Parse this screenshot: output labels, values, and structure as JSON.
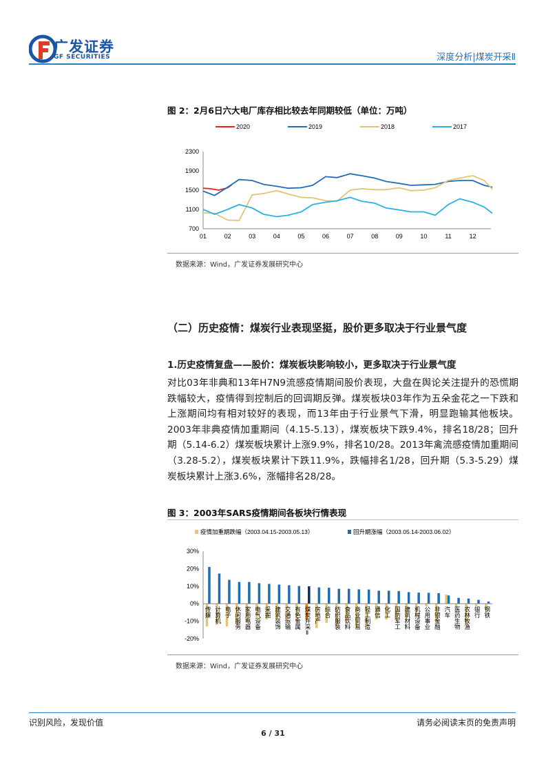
{
  "header": {
    "logo_cn": "广发证券",
    "logo_en": "GF SECURITIES",
    "report_type": "深度分析|煤炭开采Ⅱ",
    "brand_color": "#1a56a5",
    "accent_red": "#e23a2a"
  },
  "figure2": {
    "title": "图 2：2月6日六大电厂库存相比较去年同期较低（单位：万吨）",
    "source": "数据来源：Wind，广发证券发展研究中心"
  },
  "section": {
    "heading": "（二）历史疫情：煤炭行业表现坚挺，股价更多取决于行业景气度",
    "subheading": "1.历史疫情复盘——股价：煤炭板块影响较小，更多取决于行业景气度",
    "paragraph": "对比03年非典和13年H7N9流感疫情期间股价表现，大盘在舆论关注提升的恐慌期跌幅较大，疫情得到控制后的回调期反弹。煤炭板块03年作为五朵金花之一下跌和上涨期间均有相对较好的表现，而13年由于行业景气下滑，明显跑输其他板块。2003年非典疫情加重期间（4.15-5.13），煤炭板块下跌9.4%，排名18/28；回升期（5.14-6.2）煤炭板块累计上涨9.9%，排名10/28。2013年禽流感疫情加重期间（3.28-5.2），煤炭板块累计下跌11.9%，跌幅排名1/28，回升期（5.3-5.29）煤炭板块累计上涨3.6%，涨幅排名28/28。"
  },
  "figure3": {
    "title": "图 3：2003年SARS疫情期间各板块行情表现",
    "source": "数据来源：Wind，广发证券发展研究中心"
  },
  "footer": {
    "left": "识别风险，发现价值",
    "right": "请务必阅读末页的免责声明",
    "page": "6 / 31"
  },
  "chart_data": [
    {
      "type": "line",
      "ylim": [
        700,
        2300
      ],
      "yticks": [
        "2300",
        "1900",
        "1500",
        "1100",
        "700"
      ],
      "xticks": [
        "01",
        "02",
        "03",
        "04",
        "05",
        "06",
        "07",
        "08",
        "09",
        "10",
        "11",
        "12"
      ],
      "legend": "top",
      "grid": false,
      "series": [
        {
          "name": "2020",
          "color": "#e8201e",
          "points": [
            [
              "01-01",
              1540
            ],
            [
              "01-10",
              1530
            ],
            [
              "01-20",
              1500
            ],
            [
              "02-01",
              1550
            ],
            [
              "02-06",
              1610
            ]
          ]
        },
        {
          "name": "2019",
          "color": "#1f6db5",
          "points": [
            [
              "01-01",
              1480
            ],
            [
              "01-15",
              1390
            ],
            [
              "02-01",
              1560
            ],
            [
              "02-15",
              1720
            ],
            [
              "03-01",
              1700
            ],
            [
              "03-15",
              1620
            ],
            [
              "04-01",
              1580
            ],
            [
              "04-15",
              1540
            ],
            [
              "05-01",
              1550
            ],
            [
              "05-15",
              1600
            ],
            [
              "06-01",
              1780
            ],
            [
              "06-15",
              1760
            ],
            [
              "07-01",
              1840
            ],
            [
              "07-15",
              1800
            ],
            [
              "08-01",
              1750
            ],
            [
              "08-15",
              1680
            ],
            [
              "09-01",
              1640
            ],
            [
              "09-15",
              1600
            ],
            [
              "10-01",
              1610
            ],
            [
              "10-15",
              1620
            ],
            [
              "11-01",
              1680
            ],
            [
              "11-15",
              1700
            ],
            [
              "12-01",
              1700
            ],
            [
              "12-15",
              1600
            ],
            [
              "12-25",
              1560
            ]
          ]
        },
        {
          "name": "2018",
          "color": "#e2c472",
          "points": [
            [
              "01-01",
              1030
            ],
            [
              "01-15",
              1020
            ],
            [
              "02-01",
              880
            ],
            [
              "02-15",
              870
            ],
            [
              "03-01",
              1400
            ],
            [
              "03-15",
              1430
            ],
            [
              "04-01",
              1490
            ],
            [
              "04-15",
              1420
            ],
            [
              "05-01",
              1350
            ],
            [
              "05-15",
              1340
            ],
            [
              "06-01",
              1280
            ],
            [
              "06-15",
              1270
            ],
            [
              "07-01",
              1500
            ],
            [
              "07-15",
              1530
            ],
            [
              "08-01",
              1510
            ],
            [
              "08-15",
              1510
            ],
            [
              "09-01",
              1550
            ],
            [
              "09-15",
              1490
            ],
            [
              "10-01",
              1500
            ],
            [
              "10-15",
              1550
            ],
            [
              "11-01",
              1700
            ],
            [
              "11-15",
              1750
            ],
            [
              "12-01",
              1800
            ],
            [
              "12-15",
              1700
            ],
            [
              "12-25",
              1520
            ]
          ]
        },
        {
          "name": "2017",
          "color": "#2ab0e8",
          "points": [
            [
              "01-01",
              1100
            ],
            [
              "01-15",
              1000
            ],
            [
              "02-01",
              1100
            ],
            [
              "02-15",
              1200
            ],
            [
              "03-01",
              1130
            ],
            [
              "03-15",
              1000
            ],
            [
              "04-01",
              950
            ],
            [
              "04-15",
              980
            ],
            [
              "05-01",
              1050
            ],
            [
              "05-15",
              1200
            ],
            [
              "06-01",
              1250
            ],
            [
              "06-15",
              1280
            ],
            [
              "07-01",
              1350
            ],
            [
              "07-15",
              1270
            ],
            [
              "08-01",
              1230
            ],
            [
              "08-15",
              1130
            ],
            [
              "09-01",
              1090
            ],
            [
              "09-15",
              1050
            ],
            [
              "10-01",
              1050
            ],
            [
              "10-15",
              980
            ],
            [
              "11-01",
              1200
            ],
            [
              "11-15",
              1320
            ],
            [
              "12-01",
              1250
            ],
            [
              "12-15",
              1150
            ],
            [
              "12-25",
              1020
            ]
          ]
        }
      ]
    },
    {
      "type": "bar",
      "ylim": [
        -20,
        30
      ],
      "yticks": [
        "30%",
        "20%",
        "10%",
        "0%",
        "-10%",
        "-20%"
      ],
      "legend": "top",
      "categories": [
        "传媒",
        "计算机",
        "电子",
        "休闲服务",
        "家用电器",
        "电气设备",
        "采掘",
        "建筑装饰",
        "交通运输",
        "有色金属",
        "煤炭开采Ⅱ",
        "房地产",
        "综合",
        "纺织服装",
        "食品饮料",
        "商业贸易",
        "轻工制造",
        "通信",
        "化工",
        "国防军工",
        "建筑材料",
        "机械设备",
        "公用事业",
        "非银金融",
        "汽车",
        "医药生物",
        "农林牧渔",
        "银行",
        "钢铁"
      ],
      "highlight": "煤炭开采Ⅱ",
      "highlight_colors": {
        "decline": "#f07c1e",
        "rebound": "#0d2a66"
      },
      "series": [
        {
          "name": "疫情加重期跌幅（2003.04.15-2003.05.13）",
          "color": "#e2c472",
          "values": [
            -13,
            -12,
            -13,
            -12,
            -10,
            -9,
            -9,
            -9,
            -10,
            -10,
            -9.4,
            -14,
            -11,
            -13,
            -11,
            -13,
            -13,
            -9,
            -9,
            -9,
            -9,
            -7,
            -1.5,
            -10,
            5.2,
            -2,
            -12,
            -1.5,
            -3
          ]
        },
        {
          "name": "回升期涨幅（2003.05.14-2003.06.02）",
          "color": "#1f6db5",
          "values": [
            21,
            17.2,
            13.6,
            12.4,
            12.4,
            11.7,
            11.3,
            10.9,
            10.5,
            10.1,
            9.9,
            9.3,
            9.1,
            8.5,
            8.5,
            8.2,
            8.1,
            7.4,
            7.4,
            7.2,
            6.6,
            6.3,
            6.2,
            6.0,
            4.7,
            3.3,
            2.9,
            2.2,
            1.2
          ]
        }
      ]
    }
  ]
}
